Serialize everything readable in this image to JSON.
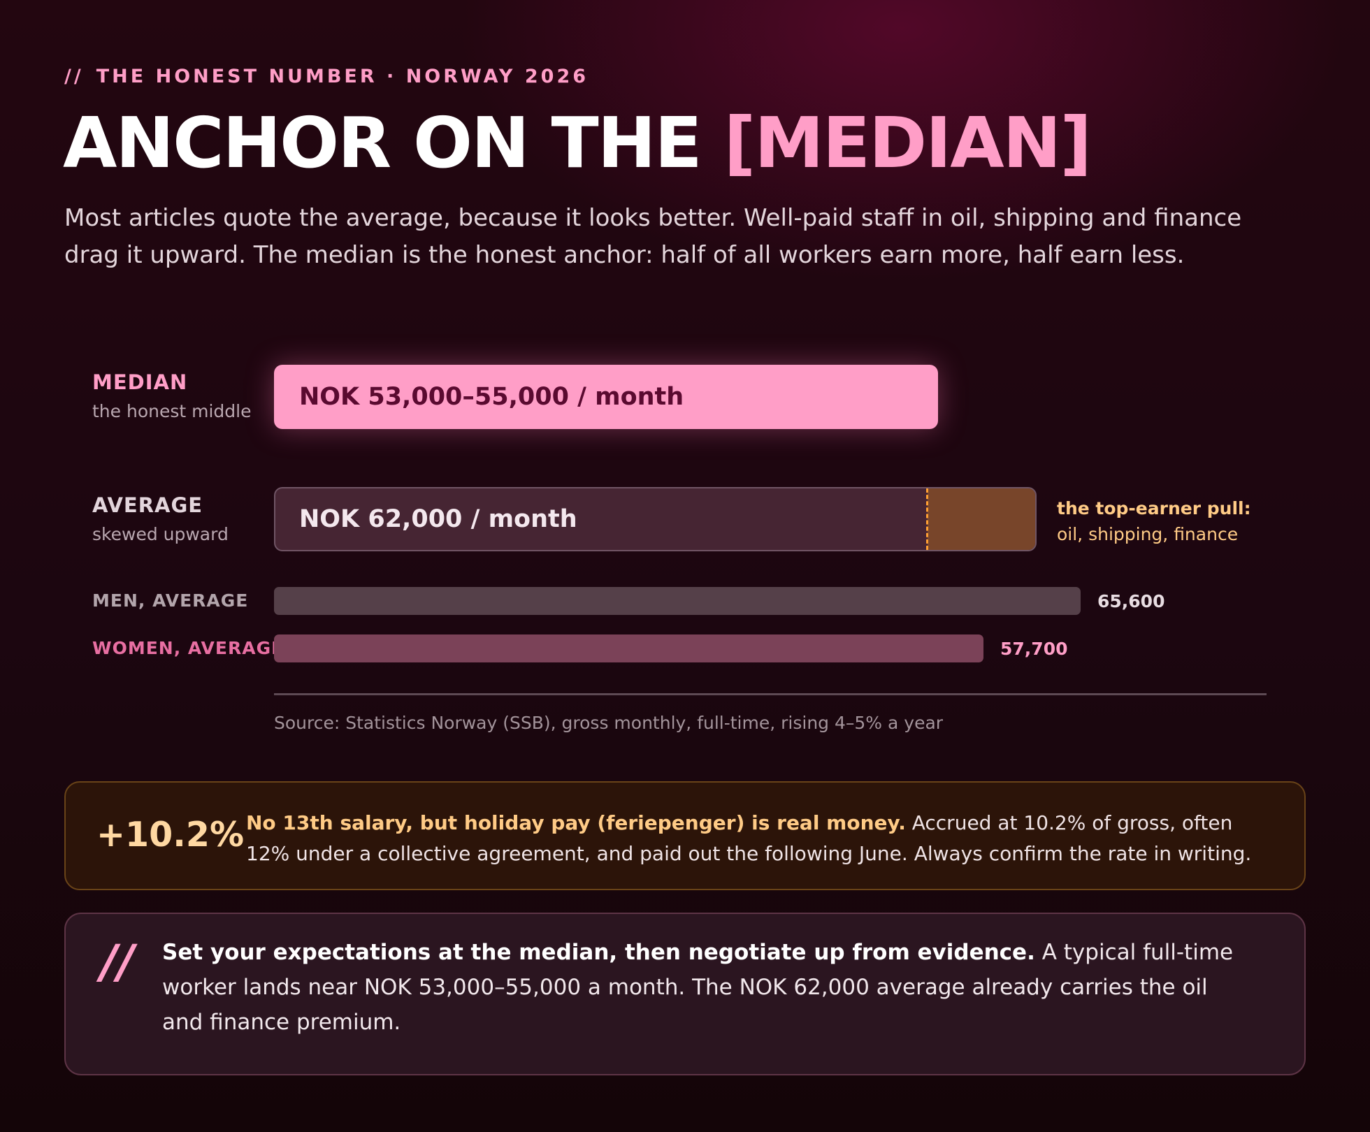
{
  "eyebrow": {
    "slashes": "//",
    "text": "THE HONEST NUMBER · NORWAY 2026"
  },
  "title": {
    "prefix": "ANCHOR ON THE ",
    "highlight": "[MEDIAN]"
  },
  "intro": "Most articles quote the average, because it looks better. Well-paid staff in oil, shipping and finance drag it upward. The median is the honest anchor: half of all workers earn more, half earn less.",
  "colors": {
    "accent_pink": "#ff9ec7",
    "pull_orange": "#ffa033",
    "note_amber": "#ffcb86",
    "men_bar": "#554049",
    "women_bar": "#7b4258"
  },
  "chart_data": {
    "type": "bar",
    "orientation": "horizontal",
    "unit": "NOK / month",
    "xlim": [
      0,
      65600
    ],
    "rows": [
      {
        "key": "median",
        "label": "MEDIAN",
        "sublabel": "the honest middle",
        "range": [
          53000,
          55000
        ],
        "bar_text": "NOK 53,000–55,000 / month"
      },
      {
        "key": "average",
        "label": "AVERAGE",
        "sublabel": "skewed upward",
        "value": 62000,
        "bar_text": "NOK 62,000 / month",
        "skew_from": 53000,
        "annotation_title": "the top-earner pull:",
        "annotation_sub": "oil, shipping, finance"
      },
      {
        "key": "men",
        "label": "MEN, AVERAGE",
        "value": 65600,
        "value_label": "65,600"
      },
      {
        "key": "women",
        "label": "WOMEN, AVERAGE",
        "value": 57700,
        "value_label": "57,700"
      }
    ],
    "source": "Source: Statistics Norway (SSB), gross monthly, full-time, rising 4–5% a year"
  },
  "holiday": {
    "percent": "+10.2%",
    "lead": "No 13th salary, but holiday pay (feriepenger) is real money.",
    "body": " Accrued at 10.2% of gross, often 12% under a collective agreement, and paid out the following June. Always confirm the rate in writing."
  },
  "quote": {
    "mark": "//",
    "lead": "Set your expectations at the median, then negotiate up from evidence.",
    "body": " A typical full-time worker lands near NOK 53,000–55,000 a month. The NOK 62,000 average already carries the oil and finance premium."
  }
}
